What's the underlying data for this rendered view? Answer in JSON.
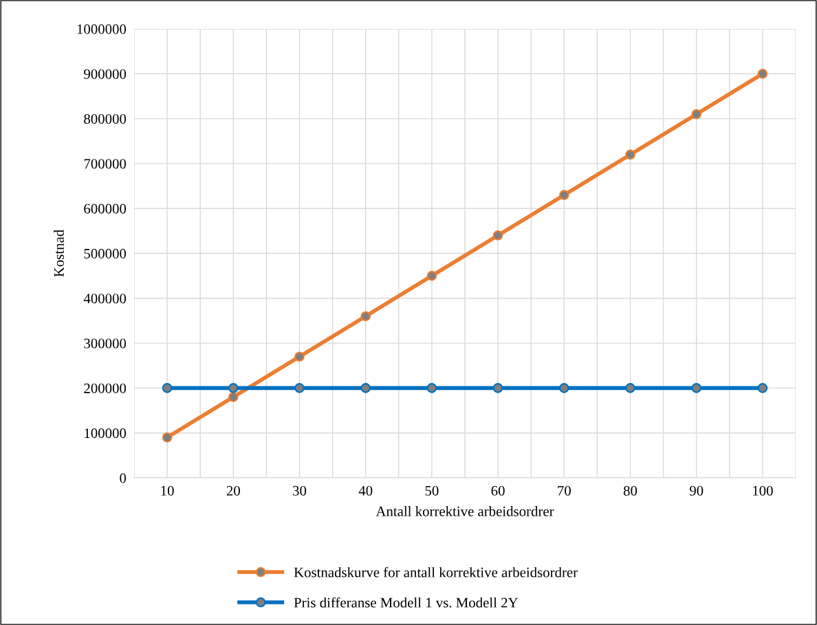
{
  "chart_data": {
    "type": "line",
    "xlabel": "Antall korrektive arbeidsordrer",
    "ylabel": "Kostnad",
    "categories": [
      "10",
      "20",
      "30",
      "40",
      "50",
      "60",
      "70",
      "80",
      "90",
      "100"
    ],
    "series": [
      {
        "name": "Kostnadskurve for antall korrektive arbeidsordrer",
        "color": "#ed7d31",
        "values": [
          90000,
          180000,
          270000,
          360000,
          450000,
          540000,
          630000,
          720000,
          810000,
          900000
        ]
      },
      {
        "name": "Pris differanse Modell 1 vs. Modell 2Y",
        "color": "#0070c0",
        "values": [
          200000,
          200000,
          200000,
          200000,
          200000,
          200000,
          200000,
          200000,
          200000,
          200000
        ]
      }
    ],
    "ylim": [
      0,
      1000000
    ],
    "yticks": [
      0,
      100000,
      200000,
      300000,
      400000,
      500000,
      600000,
      700000,
      800000,
      900000,
      1000000
    ],
    "grid": true,
    "legend": "bottom",
    "marker": "circle",
    "line_style": "solid"
  }
}
